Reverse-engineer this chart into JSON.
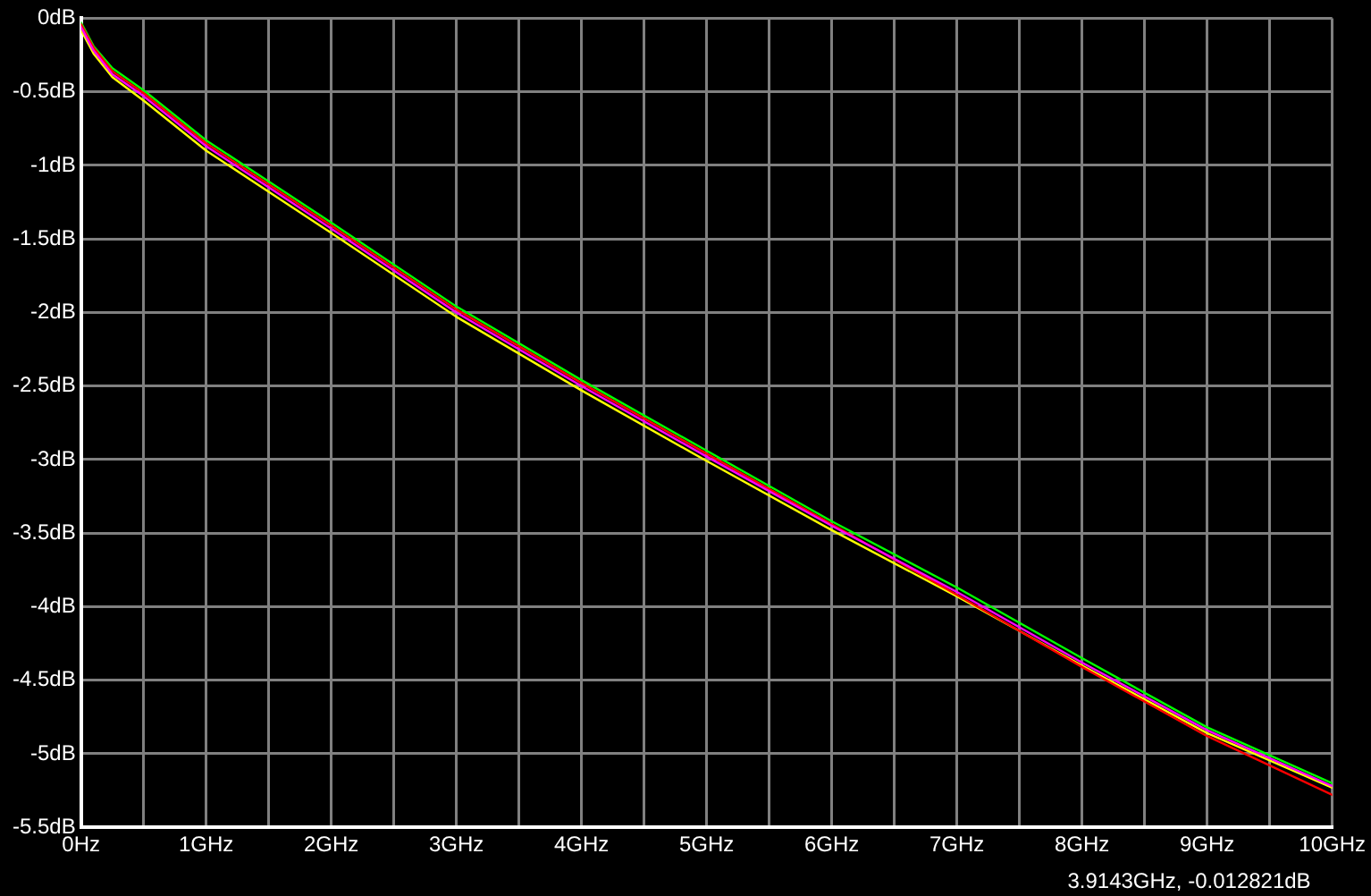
{
  "chart_data": {
    "type": "line",
    "x": [
      0,
      0.1,
      0.25,
      0.5,
      1,
      1.5,
      2,
      3,
      4,
      5,
      6,
      7,
      8,
      9,
      10
    ],
    "series": [
      {
        "color": "#ff00ff",
        "values": [
          -0.06,
          -0.22,
          -0.38,
          -0.53,
          -0.87,
          -1.15,
          -1.43,
          -2.0,
          -2.5,
          -2.98,
          -3.45,
          -3.9,
          -4.38,
          -4.84,
          -5.22
        ]
      },
      {
        "color": "#ff0000",
        "values": [
          -0.04,
          -0.2,
          -0.36,
          -0.51,
          -0.85,
          -1.13,
          -1.41,
          -1.98,
          -2.48,
          -2.96,
          -3.44,
          -3.92,
          -4.41,
          -4.88,
          -5.28
        ]
      },
      {
        "color": "#00ff00",
        "values": [
          -0.03,
          -0.19,
          -0.34,
          -0.49,
          -0.83,
          -1.11,
          -1.39,
          -1.96,
          -2.46,
          -2.94,
          -3.42,
          -3.87,
          -4.35,
          -4.82,
          -5.2
        ]
      },
      {
        "color": "#ffff00",
        "values": [
          -0.08,
          -0.24,
          -0.4,
          -0.56,
          -0.9,
          -1.18,
          -1.46,
          -2.03,
          -2.53,
          -3.01,
          -3.48,
          -3.93,
          -4.4,
          -4.86,
          -5.23
        ]
      }
    ],
    "xlim": [
      0,
      10
    ],
    "xticks": [
      {
        "value": 0,
        "label": "0Hz"
      },
      {
        "value": 0.5,
        "label": null
      },
      {
        "value": 1,
        "label": "1GHz"
      },
      {
        "value": 1.5,
        "label": null
      },
      {
        "value": 2,
        "label": "2GHz"
      },
      {
        "value": 2.5,
        "label": null
      },
      {
        "value": 3,
        "label": "3GHz"
      },
      {
        "value": 3.5,
        "label": null
      },
      {
        "value": 4,
        "label": "4GHz"
      },
      {
        "value": 4.5,
        "label": null
      },
      {
        "value": 5,
        "label": "5GHz"
      },
      {
        "value": 5.5,
        "label": null
      },
      {
        "value": 6,
        "label": "6GHz"
      },
      {
        "value": 6.5,
        "label": null
      },
      {
        "value": 7,
        "label": "7GHz"
      },
      {
        "value": 7.5,
        "label": null
      },
      {
        "value": 8,
        "label": "8GHz"
      },
      {
        "value": 8.5,
        "label": null
      },
      {
        "value": 9,
        "label": "9GHz"
      },
      {
        "value": 9.5,
        "label": null
      },
      {
        "value": 10,
        "label": "10GHz"
      }
    ],
    "ylim": [
      -5.5,
      0
    ],
    "yticks": [
      {
        "value": 0,
        "label": "0dB"
      },
      {
        "value": -0.5,
        "label": "-0.5dB"
      },
      {
        "value": -1,
        "label": "-1dB"
      },
      {
        "value": -1.5,
        "label": "-1.5dB"
      },
      {
        "value": -2,
        "label": "-2dB"
      },
      {
        "value": -2.5,
        "label": "-2.5dB"
      },
      {
        "value": -3,
        "label": "-3dB"
      },
      {
        "value": -3.5,
        "label": "-3.5dB"
      },
      {
        "value": -4,
        "label": "-4dB"
      },
      {
        "value": -4.5,
        "label": "-4.5dB"
      },
      {
        "value": -5,
        "label": "-5dB"
      },
      {
        "value": -5.5,
        "label": "-5.5dB"
      }
    ],
    "grid": true,
    "legend": false,
    "marker": "none",
    "line_style": "solid",
    "annotations": [
      "3.9143GHz, -0.012821dB"
    ]
  }
}
